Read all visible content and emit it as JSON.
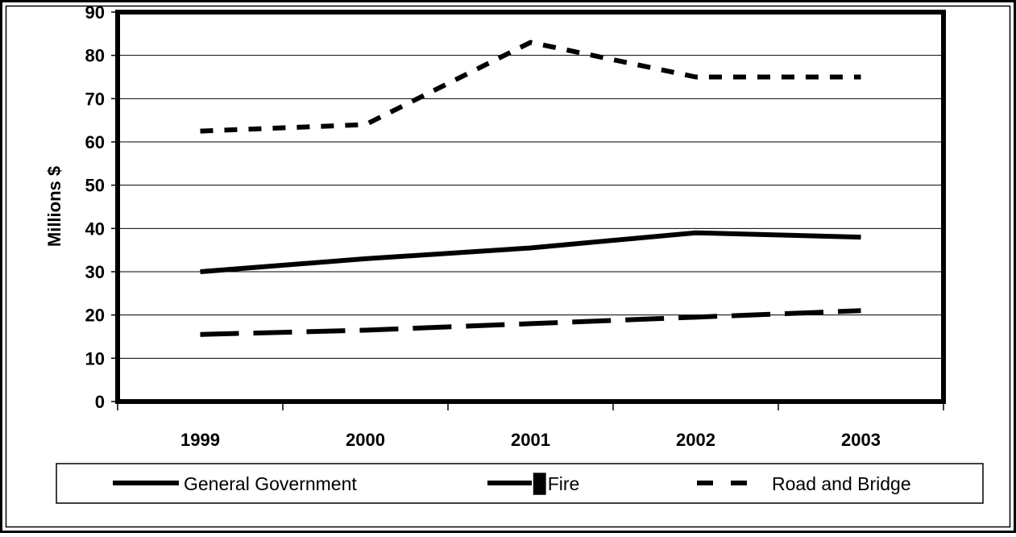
{
  "chart_data": {
    "type": "line",
    "title": "",
    "xlabel": "",
    "ylabel": "Millions $",
    "categories": [
      "1999",
      "2000",
      "2001",
      "2002",
      "2003"
    ],
    "ylim": [
      0,
      90
    ],
    "yticks": [
      0,
      10,
      20,
      30,
      40,
      50,
      60,
      70,
      80,
      90
    ],
    "grid": true,
    "legend_position": "bottom",
    "series": [
      {
        "name": "General Government",
        "values": [
          30,
          33,
          35.5,
          39,
          38
        ],
        "style": "solid",
        "color": "#000000"
      },
      {
        "name": "▉Fire",
        "values": [
          15.5,
          16.5,
          18,
          19.5,
          21
        ],
        "style": "long-dash",
        "color": "#000000"
      },
      {
        "name": "Road and Bridge",
        "values": [
          62.5,
          64,
          83,
          75,
          75
        ],
        "style": "short-dash",
        "color": "#000000"
      }
    ]
  },
  "colors": {
    "background": "#ffffff",
    "frame": "#000000",
    "gridline": "#000000",
    "series": "#000000"
  }
}
